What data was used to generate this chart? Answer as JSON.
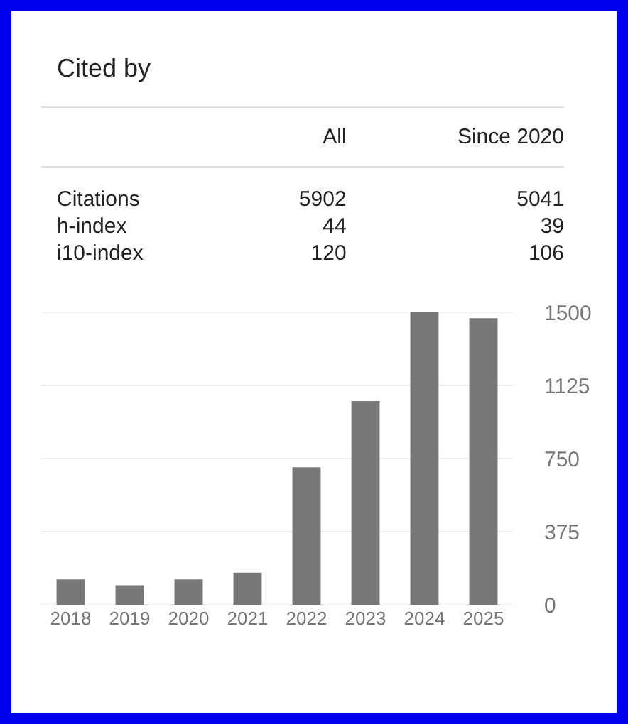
{
  "chart_data": [
    {
      "type": "other",
      "title": "Cited by",
      "data_labels": true,
      "categories": [
        "Citations",
        "h-index",
        "i10-index"
      ],
      "series": [
        {
          "name": "All",
          "values": [
            5902,
            44,
            120
          ]
        },
        {
          "name": "Since 2020",
          "values": [
            5041,
            39,
            106
          ]
        }
      ]
    },
    {
      "type": "bar",
      "categories": [
        "2018",
        "2019",
        "2020",
        "2021",
        "2022",
        "2023",
        "2024",
        "2025"
      ],
      "values": [
        130,
        100,
        130,
        165,
        705,
        1045,
        1500,
        1470
      ],
      "color": "#777777",
      "ylim": [
        0,
        1500
      ],
      "yticks": [
        0,
        375,
        750,
        1125,
        1500
      ],
      "grid": "y",
      "legend": false
    }
  ]
}
